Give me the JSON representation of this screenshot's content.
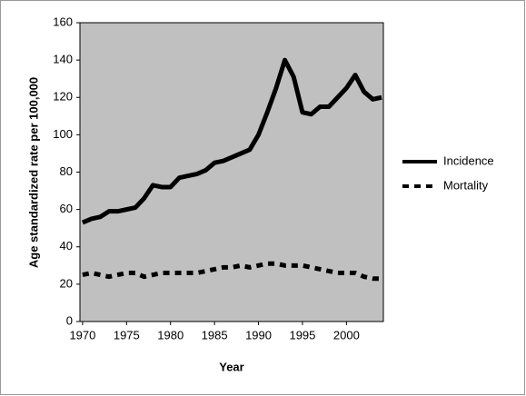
{
  "chart_data": {
    "type": "line",
    "x_label": "Year",
    "y_label": "Age standardized rate per 100,000",
    "x": [
      1970,
      1971,
      1972,
      1973,
      1974,
      1975,
      1976,
      1977,
      1978,
      1979,
      1980,
      1981,
      1982,
      1983,
      1984,
      1985,
      1986,
      1987,
      1988,
      1989,
      1990,
      1991,
      1992,
      1993,
      1994,
      1995,
      1996,
      1997,
      1998,
      1999,
      2000,
      2001,
      2002,
      2003,
      2004
    ],
    "series": [
      {
        "name": "Incidence",
        "color": "#000000",
        "line_style": "solid",
        "values": [
          53,
          55,
          56,
          59,
          59,
          60,
          61,
          66,
          73,
          72,
          72,
          77,
          78,
          79,
          81,
          85,
          86,
          88,
          90,
          92,
          100,
          112,
          125,
          140,
          131,
          112,
          111,
          115,
          115,
          120,
          125,
          132,
          123,
          119,
          120
        ]
      },
      {
        "name": "Mortality",
        "color": "#000000",
        "line_style": "dashed",
        "values": [
          25,
          26,
          25,
          24,
          25,
          26,
          26,
          24,
          25,
          26,
          26,
          26,
          26,
          26,
          27,
          28,
          29,
          29,
          30,
          29,
          30,
          31,
          31,
          30,
          30,
          30,
          29,
          28,
          27,
          26,
          26,
          26,
          24,
          23,
          23
        ]
      }
    ],
    "xlim": [
      1969.7,
      2004.2
    ],
    "xticks": [
      1970,
      1975,
      1980,
      1985,
      1990,
      1995,
      2000
    ],
    "ylim": [
      0,
      160
    ],
    "yticks": [
      0,
      20,
      40,
      60,
      80,
      100,
      120,
      140,
      160
    ],
    "plot_background": "#c0c0c0",
    "legend": "right"
  }
}
